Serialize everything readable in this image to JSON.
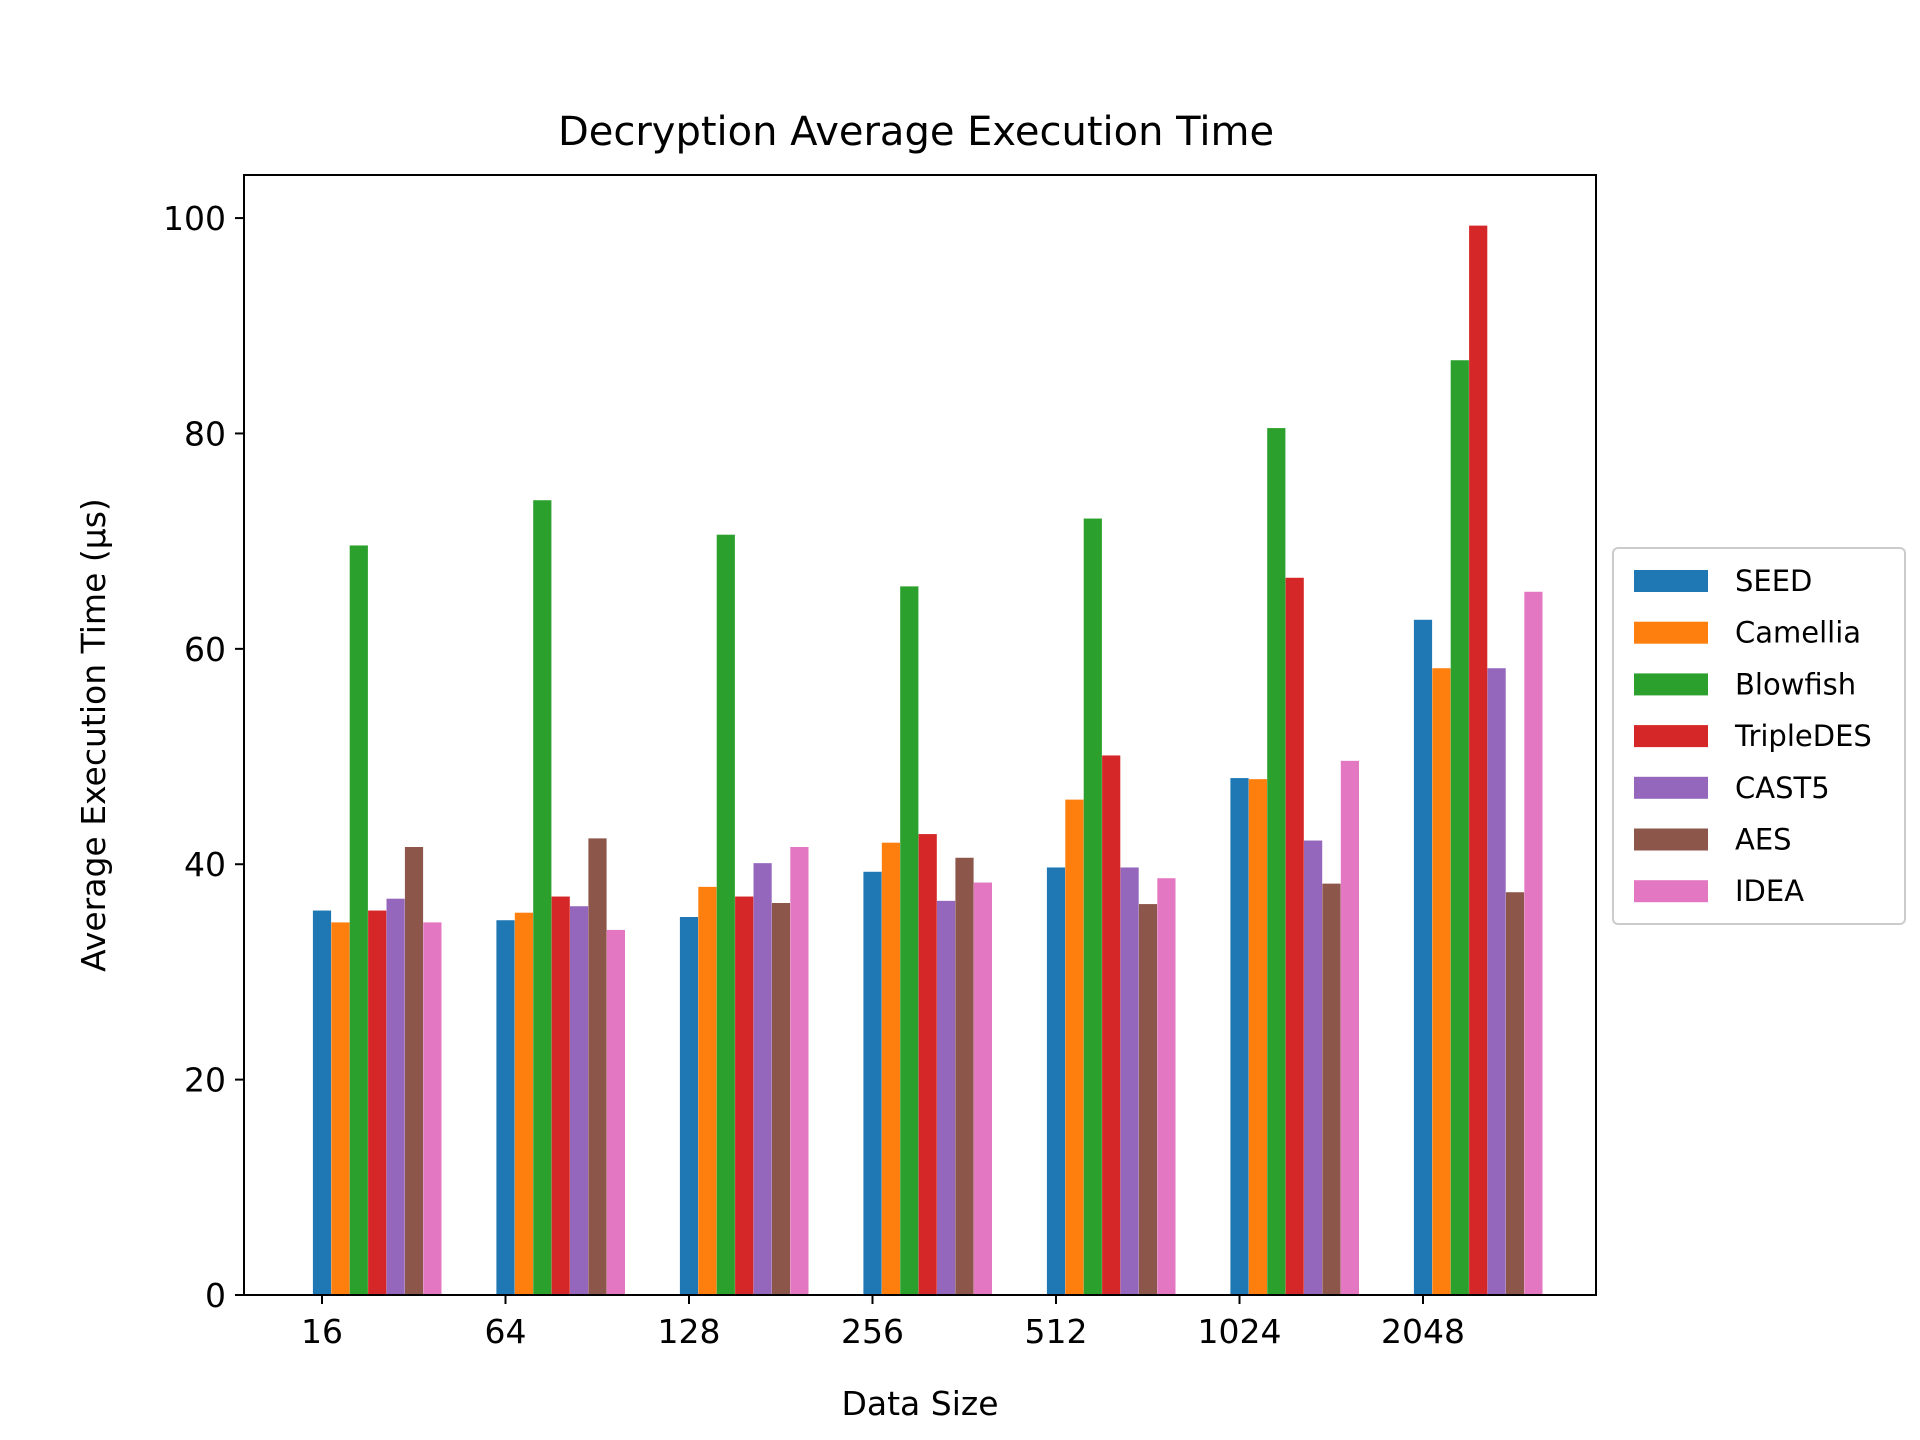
{
  "chart_data": {
    "type": "bar",
    "title": "Decryption Average Execution Time",
    "xlabel": "Data Size",
    "ylabel": "Average Execution Time (µs)",
    "categories": [
      "16",
      "64",
      "128",
      "256",
      "512",
      "1024",
      "2048"
    ],
    "ylim": [
      0,
      104
    ],
    "yticks": [
      0,
      20,
      40,
      60,
      80,
      100
    ],
    "grid": false,
    "legend_position": "center-right, outside plot",
    "series": [
      {
        "name": "SEED",
        "color": "#1f77b4",
        "values": [
          35.7,
          34.8,
          35.1,
          39.3,
          39.7,
          48.0,
          62.7
        ]
      },
      {
        "name": "Camellia",
        "color": "#ff7f0e",
        "values": [
          34.6,
          35.5,
          37.9,
          42.0,
          46.0,
          47.9,
          58.2
        ]
      },
      {
        "name": "Blowfish",
        "color": "#2ca02c",
        "values": [
          69.6,
          73.8,
          70.6,
          65.8,
          72.1,
          80.5,
          86.8
        ]
      },
      {
        "name": "TripleDES",
        "color": "#d62728",
        "values": [
          35.7,
          37.0,
          37.0,
          42.8,
          50.1,
          66.6,
          99.3
        ]
      },
      {
        "name": "CAST5",
        "color": "#9467bd",
        "values": [
          36.8,
          36.1,
          40.1,
          36.6,
          39.7,
          42.2,
          58.2
        ]
      },
      {
        "name": "AES",
        "color": "#8c564b",
        "values": [
          41.6,
          42.4,
          36.4,
          40.6,
          36.3,
          38.2,
          37.4
        ]
      },
      {
        "name": "IDEA",
        "color": "#e377c2",
        "values": [
          34.6,
          33.9,
          41.6,
          38.3,
          38.7,
          49.6,
          65.3
        ]
      }
    ]
  }
}
